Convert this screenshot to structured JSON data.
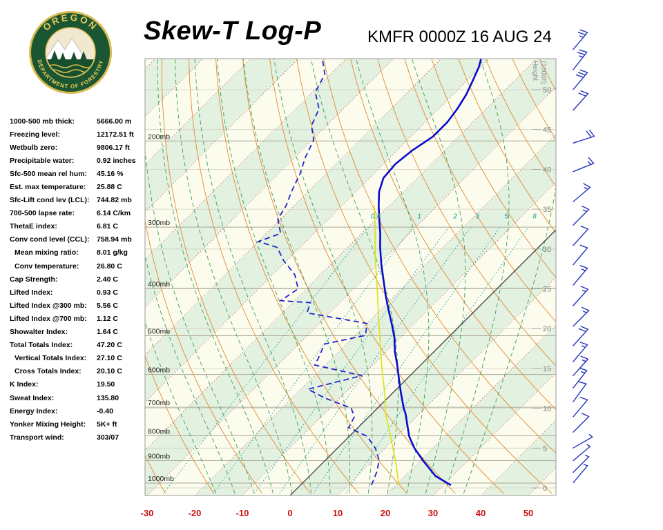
{
  "header": {
    "title": "Skew-T Log-P",
    "station": "KMFR 0000Z 16 AUG 24",
    "logo": {
      "top_text": "OREGON",
      "bottom_text": "DEPARTMENT OF FORESTRY"
    }
  },
  "indices": [
    {
      "label": "1000-500 mb thick:",
      "value": "5666.00 m",
      "indent": false
    },
    {
      "label": "Freezing level:",
      "value": "12172.51 ft",
      "indent": false
    },
    {
      "label": "Wetbulb zero:",
      "value": "9806.17 ft",
      "indent": false
    },
    {
      "label": "Precipitable water:",
      "value": "0.92 inches",
      "indent": false
    },
    {
      "label": "Sfc-500 mean rel hum:",
      "value": "45.16 %",
      "indent": false
    },
    {
      "label": "Est. max temperature:",
      "value": "25.88 C",
      "indent": false
    },
    {
      "label": "Sfc-Lift cond lev (LCL):",
      "value": "744.82 mb",
      "indent": false
    },
    {
      "label": "700-500 lapse rate:",
      "value": "6.14 C/km",
      "indent": false
    },
    {
      "label": "ThetaE index:",
      "value": "6.81 C",
      "indent": false
    },
    {
      "label": "Conv cond level (CCL):",
      "value": "758.94 mb",
      "indent": false
    },
    {
      "label": "Mean mixing ratio:",
      "value": "8.01 g/kg",
      "indent": true
    },
    {
      "label": "Conv temperature:",
      "value": "26.80 C",
      "indent": true
    },
    {
      "label": "Cap Strength:",
      "value": "2.40 C",
      "indent": false
    },
    {
      "label": "Lifted Index:",
      "value": "0.93 C",
      "indent": false
    },
    {
      "label": "Lifted Index @300 mb:",
      "value": "5.56 C",
      "indent": false
    },
    {
      "label": "Lifted Index @700 mb:",
      "value": "1.12 C",
      "indent": false
    },
    {
      "label": "Showalter Index:",
      "value": "1.64 C",
      "indent": false
    },
    {
      "label": "Total Totals Index:",
      "value": "47.20 C",
      "indent": false
    },
    {
      "label": "Vertical Totals Index:",
      "value": "27.10 C",
      "indent": true
    },
    {
      "label": "Cross Totals Index:",
      "value": "20.10 C",
      "indent": true
    },
    {
      "label": "K Index:",
      "value": "19.50",
      "indent": false
    },
    {
      "label": "Sweat Index:",
      "value": "135.80",
      "indent": false
    },
    {
      "label": "Energy Index:",
      "value": "-0.40",
      "indent": false
    },
    {
      "label": "Yonker Mixing Height:",
      "value": "5K+ ft",
      "indent": false
    },
    {
      "label": "Transport wind:",
      "value": "303/07",
      "indent": false
    }
  ],
  "chart_data": {
    "type": "skew-t-log-p",
    "title": "Skew-T Log-P",
    "station_time": "KMFR 0000Z 16 AUG 24",
    "pressure_levels_mb": [
      200,
      300,
      400,
      500,
      600,
      700,
      800,
      900,
      1000
    ],
    "pressure_axis_labels": [
      "200mb",
      "300mb",
      "400mb",
      "500mb",
      "600mb",
      "700mb",
      "800mb",
      "900mb",
      "1000mb"
    ],
    "temp_axis_c": [
      -30,
      -20,
      -10,
      0,
      10,
      20,
      30,
      40,
      50
    ],
    "height_axis_kft": [
      0,
      5,
      10,
      15,
      20,
      25,
      30,
      35,
      40,
      45,
      50
    ],
    "height_axis_title": [
      "Height",
      "(1000ft)"
    ],
    "mixing_ratio_values": [
      0.4,
      1,
      2,
      3,
      5,
      8
    ],
    "mixing_ratio_labels": [
      "0.4",
      "1",
      "2",
      "3",
      "5",
      "8"
    ],
    "isotherm_interval_c": 10,
    "axis_ranges": {
      "pressure_mb": [
        136,
        1050
      ],
      "surface_temp_c": [
        -30,
        55
      ]
    },
    "series": {
      "temperature": {
        "name": "Temperature",
        "color": "#0a0ad0",
        "points_p_t": [
          [
            1010,
            31.6
          ],
          [
            967,
            26.4
          ],
          [
            900,
            20.6
          ],
          [
            849,
            16.2
          ],
          [
            803,
            12.6
          ],
          [
            758,
            9.6
          ],
          [
            722,
            7.1
          ],
          [
            703,
            5.5
          ],
          [
            654,
            1.7
          ],
          [
            613,
            -1.6
          ],
          [
            574,
            -4.9
          ],
          [
            538,
            -8.3
          ],
          [
            504,
            -11.3
          ],
          [
            472,
            -14.8
          ],
          [
            442,
            -18.4
          ],
          [
            414,
            -21.9
          ],
          [
            388,
            -25.2
          ],
          [
            358,
            -29.3
          ],
          [
            330,
            -33.2
          ],
          [
            309,
            -36.1
          ],
          [
            289,
            -39.3
          ],
          [
            271,
            -42.3
          ],
          [
            254,
            -45.1
          ],
          [
            238,
            -47.1
          ],
          [
            223,
            -47.5
          ],
          [
            209,
            -46.8
          ],
          [
            196,
            -45.4
          ],
          [
            183,
            -45.4
          ],
          [
            172,
            -46.1
          ],
          [
            161,
            -47.2
          ],
          [
            151,
            -48.7
          ],
          [
            141,
            -50.4
          ],
          [
            136,
            -51.6
          ]
        ]
      },
      "dewpoint": {
        "name": "Dewpoint",
        "color": "#2222cc",
        "points_p_t": [
          [
            1010,
            14.9
          ],
          [
            951,
            13.3
          ],
          [
            900,
            11.4
          ],
          [
            849,
            8.0
          ],
          [
            803,
            3.8
          ],
          [
            770,
            -2.0
          ],
          [
            733,
            -3.0
          ],
          [
            703,
            -5.5
          ],
          [
            671,
            -13.0
          ],
          [
            643,
            -18.6
          ],
          [
            603,
            -10.1
          ],
          [
            574,
            -22.2
          ],
          [
            546,
            -23.3
          ],
          [
            520,
            -24.6
          ],
          [
            499,
            -17.8
          ],
          [
            472,
            -20.0
          ],
          [
            449,
            -34.8
          ],
          [
            428,
            -36.2
          ],
          [
            424,
            -42.9
          ],
          [
            401,
            -41.7
          ],
          [
            375,
            -45.4
          ],
          [
            351,
            -50.7
          ],
          [
            330,
            -54.8
          ],
          [
            321,
            -60.0
          ],
          [
            309,
            -57.0
          ],
          [
            289,
            -60.6
          ],
          [
            271,
            -61.7
          ],
          [
            254,
            -63.5
          ],
          [
            234,
            -65.4
          ],
          [
            216,
            -67.8
          ],
          [
            199,
            -69.7
          ],
          [
            186,
            -73.2
          ],
          [
            172,
            -75.1
          ],
          [
            159,
            -79.4
          ],
          [
            146,
            -81.2
          ],
          [
            137,
            -84.5
          ]
        ]
      },
      "wetbulb": {
        "name": "Wet-bulb",
        "color": "#dfdf12",
        "points_p_t": [
          [
            1010,
            20.7
          ],
          [
            900,
            14.8
          ],
          [
            803,
            8.7
          ],
          [
            722,
            2.9
          ],
          [
            654,
            -1.7
          ],
          [
            594,
            -6.5
          ],
          [
            538,
            -11.3
          ],
          [
            499,
            -14.8
          ],
          [
            457,
            -19.0
          ],
          [
            414,
            -23.6
          ],
          [
            375,
            -28.3
          ],
          [
            341,
            -32.8
          ],
          [
            309,
            -37.2
          ],
          [
            280,
            -41.7
          ],
          [
            271,
            -43.3
          ]
        ]
      }
    },
    "wind_barbs": [
      {
        "p": 130,
        "spd": 25,
        "ang": 40
      },
      {
        "p": 143,
        "spd": 25,
        "ang": 38
      },
      {
        "p": 157,
        "spd": 30,
        "ang": 40
      },
      {
        "p": 173,
        "spd": 20,
        "ang": 42
      },
      {
        "p": 202,
        "spd": 20,
        "ang": 72
      },
      {
        "p": 231,
        "spd": 15,
        "ang": 68
      },
      {
        "p": 266,
        "spd": 15,
        "ang": 50
      },
      {
        "p": 297,
        "spd": 15,
        "ang": 45
      },
      {
        "p": 327,
        "spd": 10,
        "ang": 42
      },
      {
        "p": 358,
        "spd": 10,
        "ang": 40
      },
      {
        "p": 394,
        "spd": 15,
        "ang": 40
      },
      {
        "p": 434,
        "spd": 15,
        "ang": 42
      },
      {
        "p": 478,
        "spd": 15,
        "ang": 45
      },
      {
        "p": 524,
        "spd": 20,
        "ang": 42
      },
      {
        "p": 565,
        "spd": 15,
        "ang": 40
      },
      {
        "p": 603,
        "spd": 15,
        "ang": 42
      },
      {
        "p": 639,
        "spd": 15,
        "ang": 38
      },
      {
        "p": 682,
        "spd": 10,
        "ang": 36
      },
      {
        "p": 732,
        "spd": 10,
        "ang": 40
      },
      {
        "p": 787,
        "spd": 10,
        "ang": 45
      },
      {
        "p": 848,
        "spd": 5,
        "ang": 60
      },
      {
        "p": 900,
        "spd": 5,
        "ang": 50
      },
      {
        "p": 951,
        "spd": 5,
        "ang": 45
      },
      {
        "p": 998,
        "spd": 5,
        "ang": 40
      }
    ],
    "colors": {
      "band_green": "#e3f1e1",
      "band_cream": "#fcfcee",
      "isotherm_dot": "#c4685a",
      "pressure_line": "#a8a896",
      "height_line": "#cfcfc0",
      "dry_adiabat": "#e2882c",
      "moist_adiabat": "#3d9e50",
      "mixing_ratio": "#18a096",
      "zero_isotherm": "#333333",
      "wind_barb": "#2233bb",
      "axis_label_red": "#cc1111",
      "pressure_label": "#222222",
      "height_label": "#808080",
      "frame": "#999999"
    }
  }
}
